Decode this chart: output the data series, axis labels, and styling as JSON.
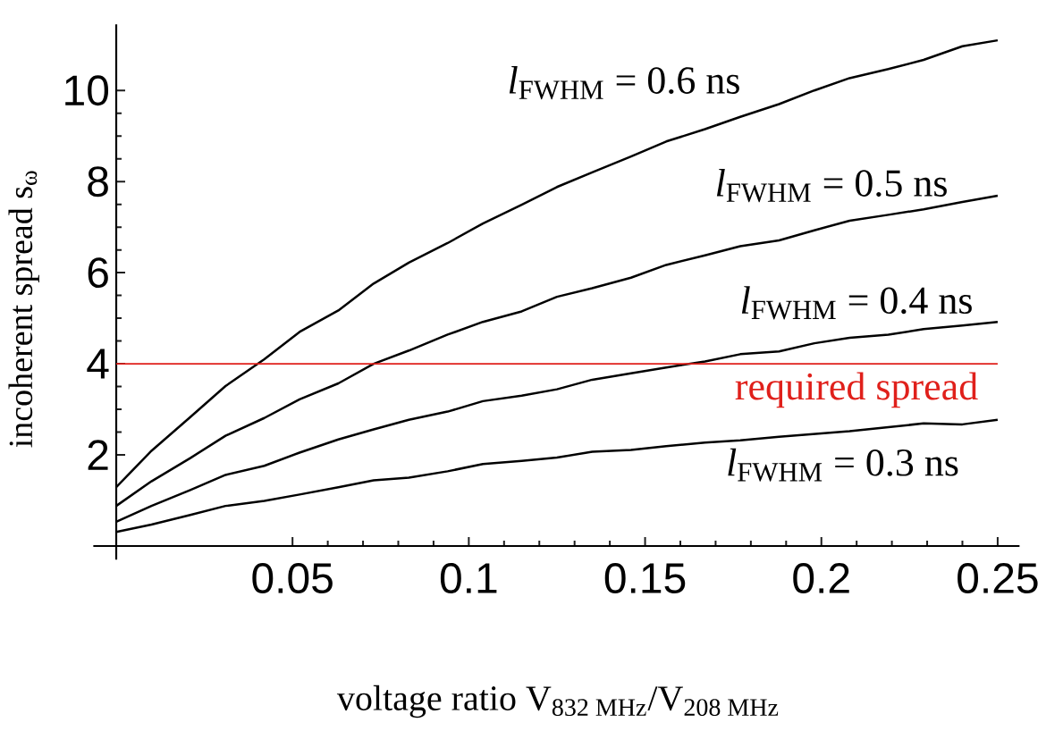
{
  "chart_data": {
    "type": "line",
    "xlabel": "voltage ratio V$_{832 MHz}$/V$_{208 MHz}$",
    "ylabel": "incoherent spread s$_{ω}$",
    "x": [
      0,
      0.01,
      0.021,
      0.031,
      0.042,
      0.052,
      0.063,
      0.073,
      0.083,
      0.094,
      0.104,
      0.115,
      0.125,
      0.135,
      0.146,
      0.156,
      0.167,
      0.177,
      0.188,
      0.198,
      0.208,
      0.219,
      0.229,
      0.24,
      0.25
    ],
    "series": [
      {
        "name": "*l*$_{FWHM}$ = 0.6 ns",
        "color": "#000000",
        "values": [
          1.29,
          2.09,
          2.83,
          3.51,
          4.1,
          4.7,
          5.17,
          5.76,
          6.22,
          6.65,
          7.08,
          7.49,
          7.88,
          8.2,
          8.55,
          8.88,
          9.15,
          9.42,
          9.7,
          10.0,
          10.27,
          10.47,
          10.67,
          10.97,
          11.1
        ]
      },
      {
        "name": "*l*$_{FWHM}$ = 0.5 ns",
        "color": "#000000",
        "values": [
          0.88,
          1.42,
          1.93,
          2.42,
          2.81,
          3.22,
          3.57,
          4.0,
          4.29,
          4.64,
          4.92,
          5.15,
          5.47,
          5.66,
          5.89,
          6.17,
          6.38,
          6.58,
          6.71,
          6.93,
          7.14,
          7.27,
          7.39,
          7.55,
          7.69
        ]
      },
      {
        "name": "*l*$_{FWHM}$ = 0.4 ns",
        "color": "#000000",
        "values": [
          0.53,
          0.88,
          1.23,
          1.56,
          1.76,
          2.05,
          2.34,
          2.56,
          2.77,
          2.95,
          3.18,
          3.3,
          3.44,
          3.65,
          3.79,
          3.92,
          4.05,
          4.21,
          4.27,
          4.45,
          4.57,
          4.64,
          4.76,
          4.84,
          4.92
        ]
      },
      {
        "name": "*l*$_{FWHM}$ = 0.3 ns",
        "color": "#000000",
        "values": [
          0.31,
          0.47,
          0.68,
          0.88,
          0.99,
          1.13,
          1.29,
          1.44,
          1.5,
          1.64,
          1.8,
          1.87,
          1.94,
          2.07,
          2.11,
          2.19,
          2.27,
          2.32,
          2.4,
          2.46,
          2.52,
          2.61,
          2.69,
          2.67,
          2.77
        ]
      }
    ],
    "xlim": [
      -0.0065,
      0.2562
    ],
    "ylim": [
      -0.3,
      11.45
    ],
    "xticks": [
      0.05,
      0.1,
      0.15,
      0.2,
      0.25
    ],
    "yticks": [
      2,
      4,
      6,
      8,
      10
    ],
    "ref_lines": [
      {
        "axis": "y",
        "value": 4,
        "label": "required spread",
        "color": "#e0201b"
      }
    ],
    "line_style": "solid"
  }
}
